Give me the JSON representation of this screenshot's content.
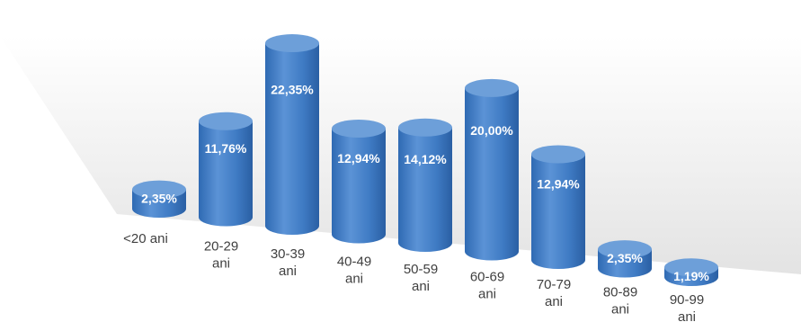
{
  "chart_data": {
    "type": "bar",
    "style": "3d-cylinder",
    "categories": [
      "<20 ani",
      "20-29 ani",
      "30-39 ani",
      "40-49 ani",
      "50-59 ani",
      "60-69 ani",
      "70-79 ani",
      "80-89 ani",
      "90-99 ani"
    ],
    "values": [
      2.35,
      11.76,
      22.35,
      12.94,
      14.12,
      20.0,
      12.94,
      2.35,
      1.19
    ],
    "data_labels": [
      "2,35%",
      "11,76%",
      "22,35%",
      "12,94%",
      "14,12%",
      "20,00%",
      "12,94%",
      "2,35%",
      "1,19%"
    ],
    "value_unit": "%",
    "grid": false,
    "legend": "none",
    "colors": {
      "bar_side": "#4a82c7",
      "bar_top": "#6d9fd9",
      "floor": "#eeeeee",
      "label_text": "#ffffff",
      "category_text": "#404040"
    }
  }
}
